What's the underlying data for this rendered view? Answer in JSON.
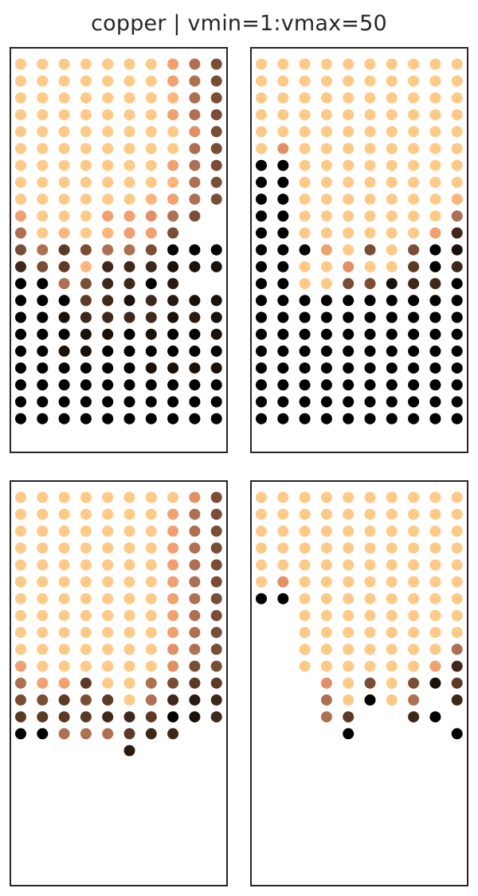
{
  "title": "copper | vmin=1:vmax=50",
  "colormap": {
    "name": "copper",
    "vmin": 1,
    "vmax": 50,
    "stops": [
      {
        "level": 0,
        "color": "#000000"
      },
      {
        "level": 1,
        "color": "#1b110b"
      },
      {
        "level": 2,
        "color": "#2b1a11"
      },
      {
        "level": 3,
        "color": "#3f281a"
      },
      {
        "level": 4,
        "color": "#5c3a25"
      },
      {
        "level": 5,
        "color": "#7a4e34"
      },
      {
        "level": 6,
        "color": "#ad7050"
      },
      {
        "level": 7,
        "color": "#e39064"
      },
      {
        "level": 8,
        "color": "#f2a06e"
      },
      {
        "level": 9,
        "color": "#ffb57a"
      },
      {
        "level": 10,
        "color": "#ffc986"
      }
    ]
  },
  "chart_data": [
    {
      "type": "scatter",
      "grid": false,
      "columns": 10,
      "cells": [
        "AAAAAAA865",
        "AAAAAAA865",
        "AAAAAAA965",
        "AAAAAAA865",
        "AAAAAAAA75",
        "AAAAAAAA65",
        "AAAAAAA865",
        "AAAAAAA965",
        "AAAAAA9865",
        "8AAA88765.",
        "6A9A9885..",
        "5645665000",
        "3549333111",
        "00653302..",
        "0004313211",
        "0013333121",
        "0001101001",
        "0011000000",
        "0000001111",
        "0000000000",
        "0000000000",
        "0000000000"
      ]
    },
    {
      "type": "scatter",
      "grid": false,
      "columns": 10,
      "cells": [
        "AAAAAAAAAA",
        "AAAAAAAAAA",
        "AAAAAAAAAA",
        "AAAAAAAAAA",
        "AAAAAAAAAA",
        "A7AAAAAAAA",
        "00AAAAAAAA",
        "00AAAAAAAA",
        "00AAAAAAA9",
        "00AAAAAAA6",
        "00AAAAAA83",
        "0008A5A501",
        "00AA7AA403",
        "00AA551330",
        "0000000000",
        "0000000000",
        "0000000000",
        "0000000000",
        "0000000000",
        "0000000000",
        "0000000000",
        "0000000000"
      ]
    },
    {
      "type": "scatter",
      "grid": false,
      "columns": 10,
      "cells": [
        "AAAAAAAA75",
        "AAAAAAA865",
        "AAAAAAA865",
        "AAAAAAA865",
        "AAAAAAA865",
        "AAAAAAA865",
        "AAAAAAA865",
        "AAAAAAA865",
        "AAAAAAA865",
        "AAAAAAA765",
        "8AAAAAA755",
        "6884AA6544",
        "55454A6323",
        "4444334013",
        "00666433..",
        ".....2....",
        "..........",
        "..........",
        "..........",
        "..........",
        "..........",
        ".........."
      ]
    },
    {
      "type": "scatter",
      "grid": false,
      "columns": 10,
      "cells": [
        "AAAAAAAAAA",
        "AAAAAAAAAA",
        "AAAAAAAAAA",
        "AAAAAAAAAA",
        "AAAAAAAAAA",
        "A7AAAAAAAA",
        "00AAAAAAAA",
        "..AAAAAAAA",
        "..AAAAAAAA",
        "..AAAAAAA6",
        "..AAAAAA83",
        "...7A5A514",
        "...6A0A6.3",
        "...64..30.",
        "....0....0",
        "..........",
        "..........",
        "..........",
        "..........",
        "..........",
        "..........",
        ".........."
      ]
    }
  ]
}
